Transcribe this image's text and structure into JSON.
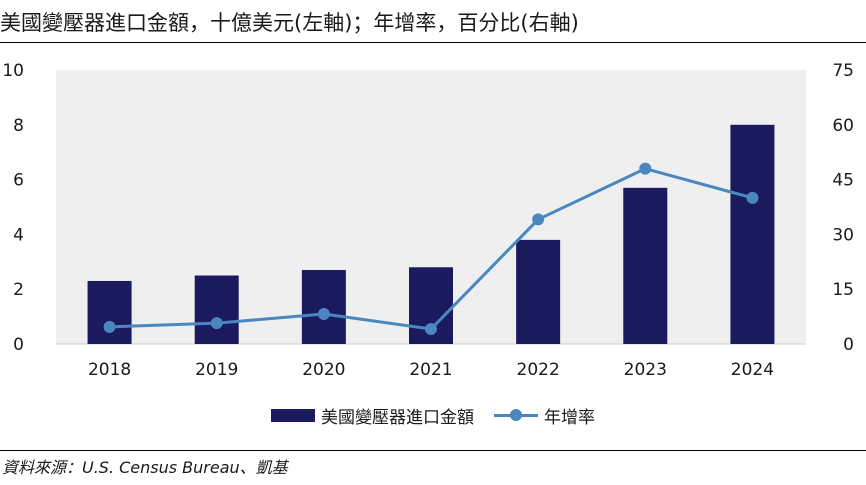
{
  "title": "美國變壓器進口金額，十億美元(左軸)；年增率，百分比(右軸)",
  "source": "資料來源：U.S. Census Bureau、凱基",
  "colors": {
    "bar": "#1b1a5e",
    "line": "#4a86c0",
    "plot_bg": "#efefef"
  },
  "chart_data": {
    "type": "bar",
    "title": "美國變壓器進口金額，十億美元(左軸)；年增率，百分比(右軸)",
    "categories": [
      "2018",
      "2019",
      "2020",
      "2021",
      "2022",
      "2023",
      "2024"
    ],
    "series": [
      {
        "name": "美國變壓器進口金額",
        "type": "bar",
        "axis": "left",
        "values": [
          2.3,
          2.5,
          2.7,
          2.8,
          3.8,
          5.7,
          8.0
        ]
      },
      {
        "name": "年增率",
        "type": "line",
        "axis": "right",
        "values": [
          4.7,
          5.7,
          8.2,
          4.1,
          34.1,
          48.0,
          40.0
        ]
      }
    ],
    "y_left": {
      "lim": [
        0,
        10
      ],
      "ticks": [
        "0",
        "2",
        "4",
        "6",
        "8",
        "10"
      ]
    },
    "y_right": {
      "lim": [
        0,
        75
      ],
      "ticks": [
        "0",
        "15",
        "30",
        "45",
        "60",
        "75"
      ]
    },
    "grid": false,
    "legend": "bottom-center"
  }
}
